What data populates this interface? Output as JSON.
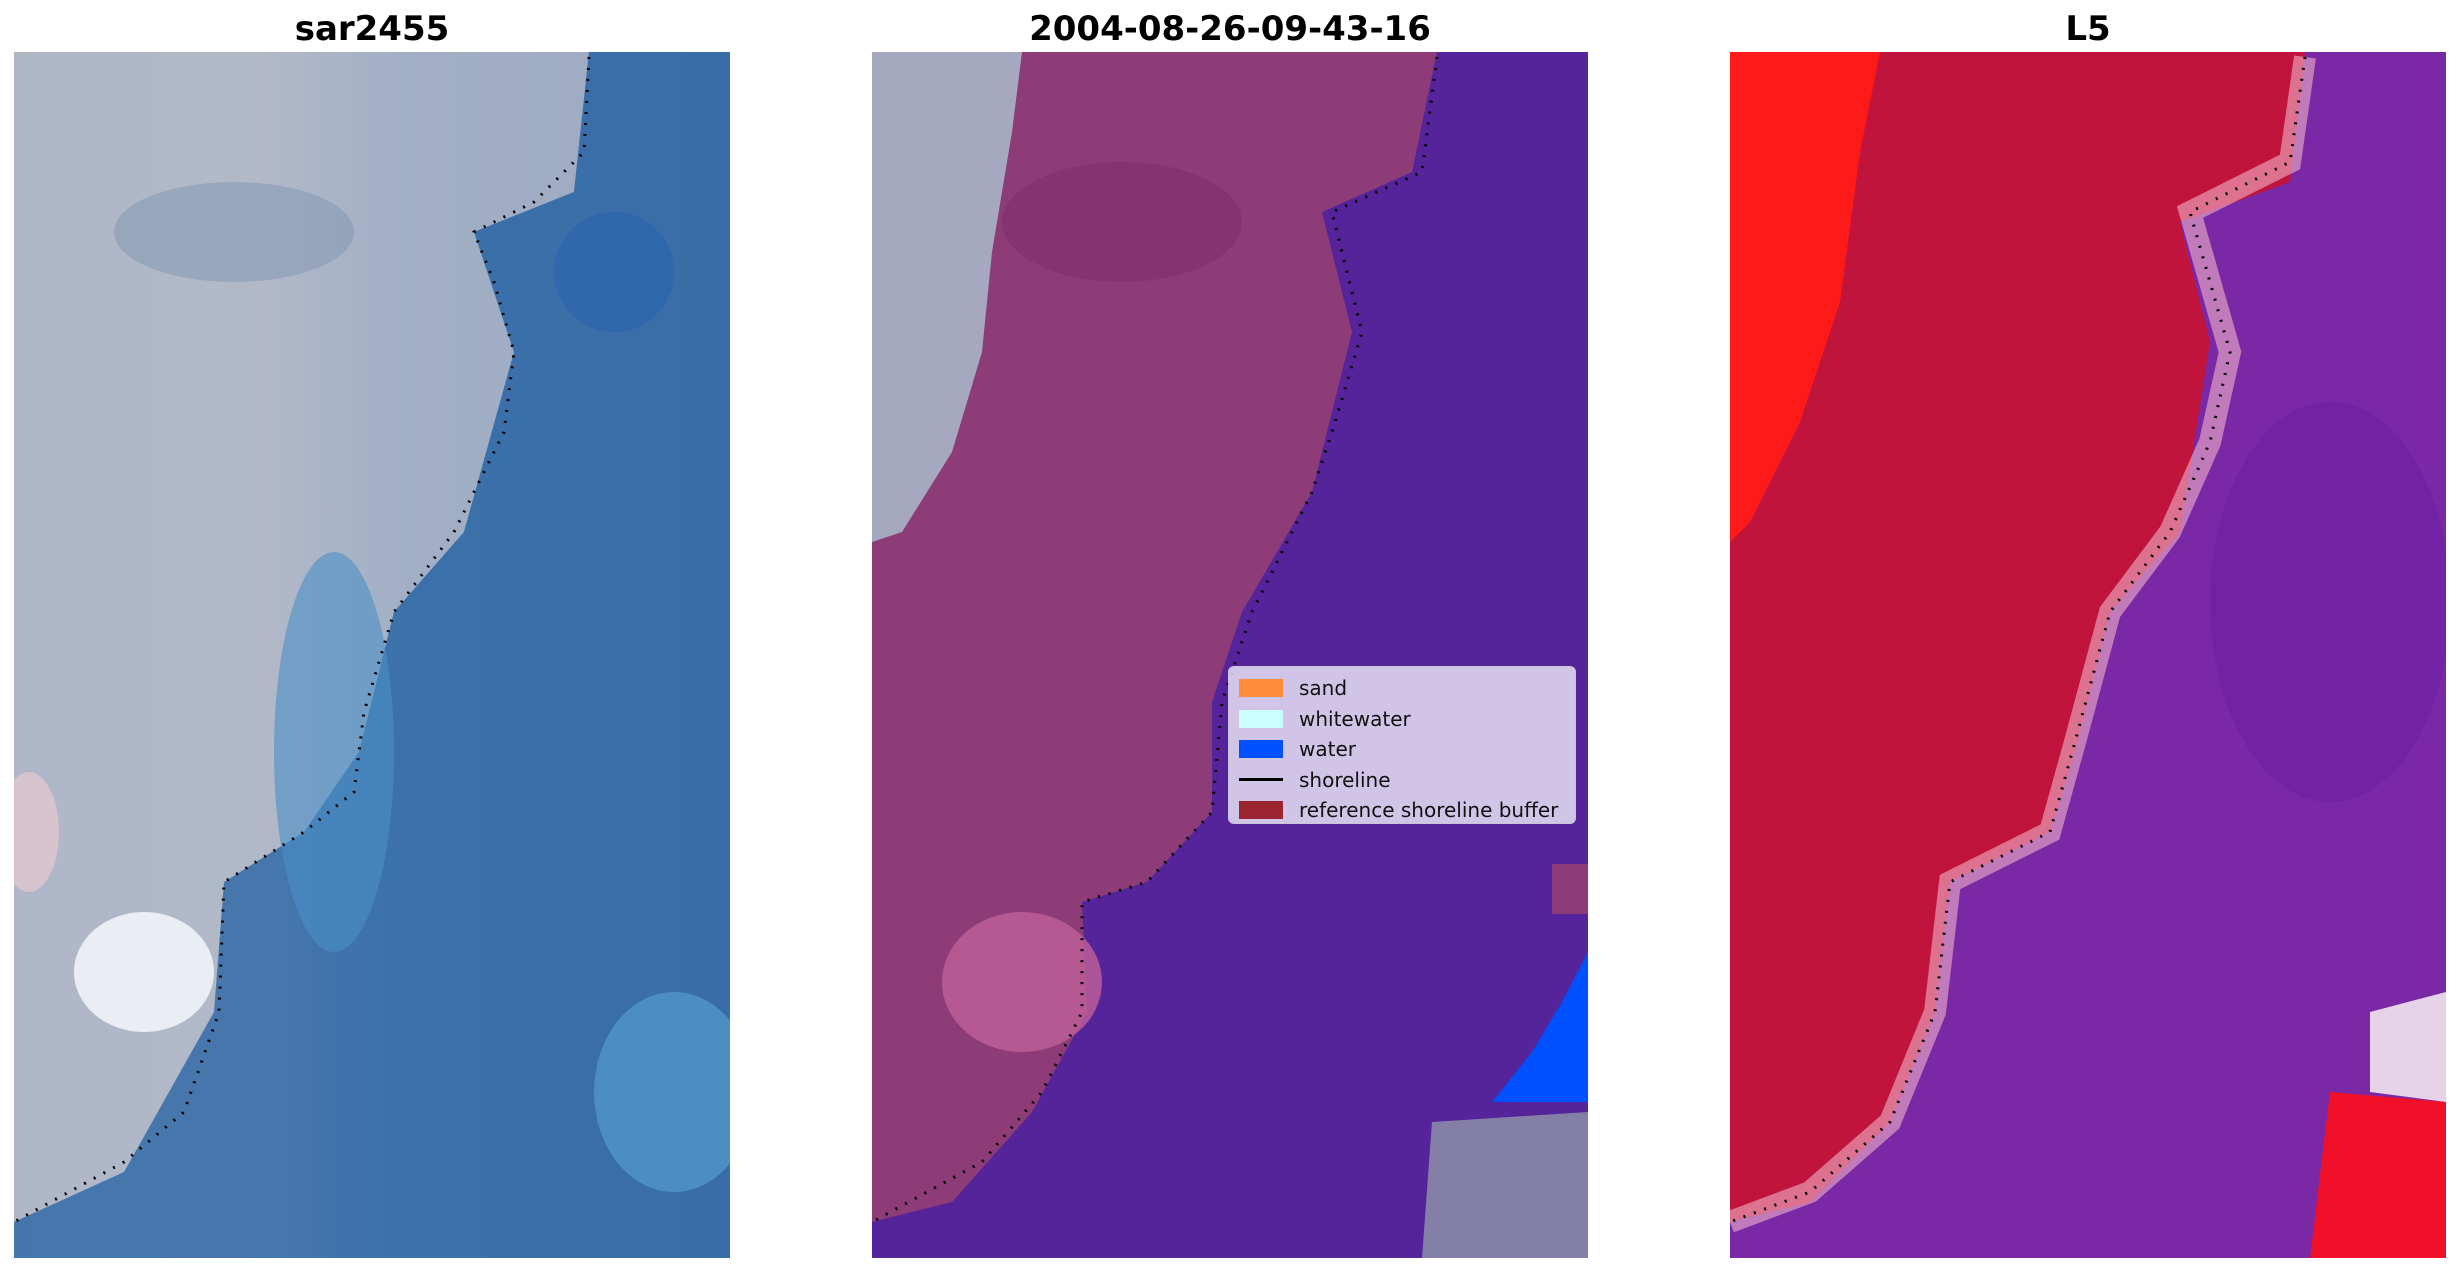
{
  "panels": [
    {
      "title": "sar2455",
      "content": "RGB satellite image of coastline with detected shoreline (dotted)"
    },
    {
      "title": "2004-08-26-09-43-16",
      "content": "Classified image with land (magenta), water (purple) overlay"
    },
    {
      "title": "L5",
      "content": "Water index map (red land, purple water) with shoreline"
    }
  ],
  "legend": {
    "items": [
      {
        "label": "sand",
        "color": "#ff8c3a"
      },
      {
        "label": "whitewater",
        "color": "#ccffff"
      },
      {
        "label": "water",
        "color": "#0050ff"
      },
      {
        "label": "shoreline",
        "color": "#000000"
      },
      {
        "label": "reference shoreline buffer",
        "color": "#9b2530"
      }
    ]
  },
  "colors": {
    "sar_land": "#b4b9c8",
    "sar_water": "#3a6ea8",
    "class_land": "#8e3c78",
    "class_water": "#55249a",
    "index_land": "#c0143c",
    "index_water": "#7a28a6"
  }
}
